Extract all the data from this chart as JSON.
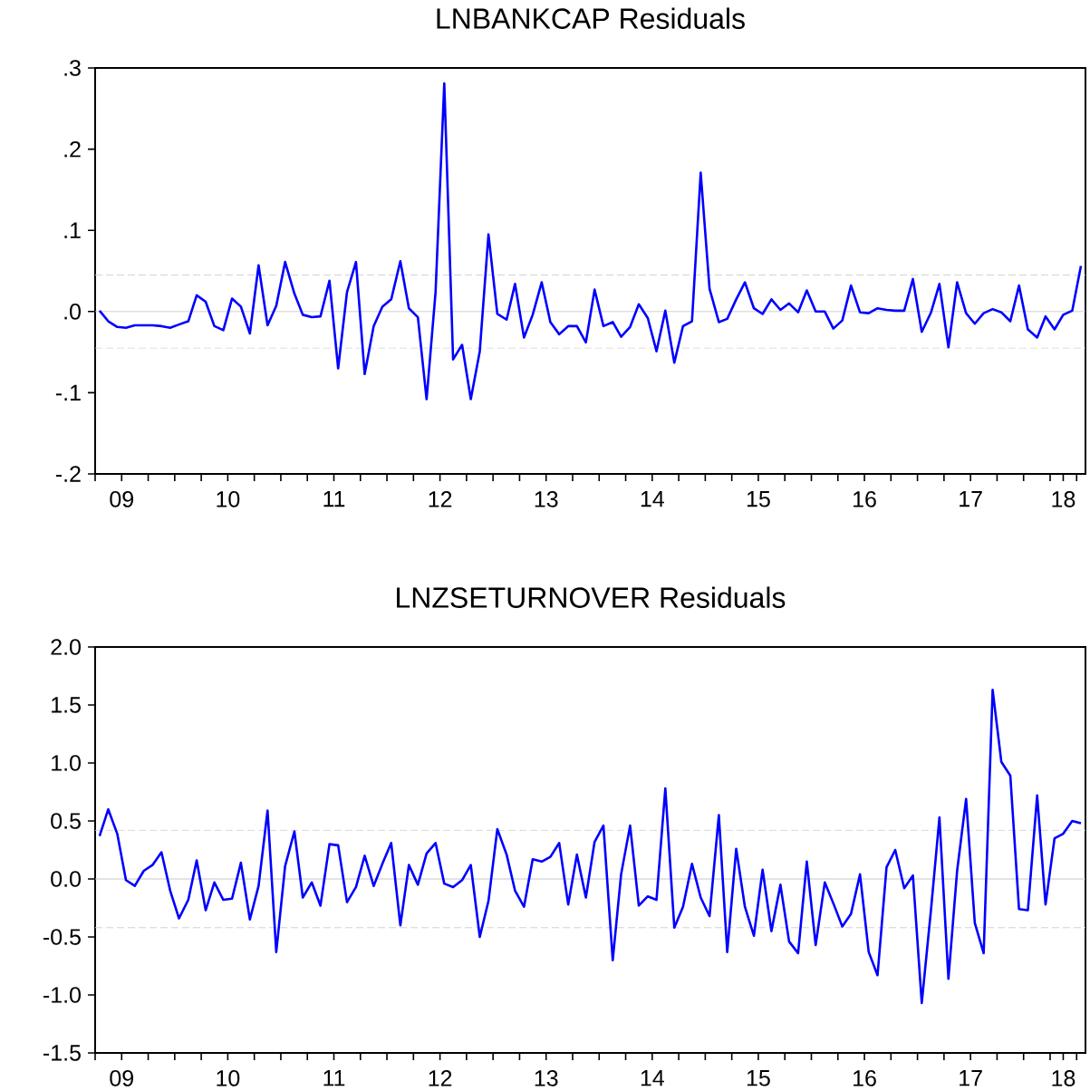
{
  "chart_data": [
    {
      "type": "line",
      "title": "LNBANKCAP Residuals",
      "x": [
        "2009-04-16",
        "2009-05-16",
        "2009-06-16",
        "2009-07-16",
        "2009-08-16",
        "2009-09-16",
        "2009-10-16",
        "2009-11-16",
        "2009-12-16",
        "2010-01-16",
        "2010-02-16",
        "2010-03-16",
        "2010-04-16",
        "2010-05-16",
        "2010-06-16",
        "2010-07-16",
        "2010-08-16",
        "2010-09-16",
        "2010-10-16",
        "2010-11-16",
        "2010-12-16",
        "2011-01-16",
        "2011-02-16",
        "2011-03-16",
        "2011-04-16",
        "2011-05-16",
        "2011-06-16",
        "2011-07-16",
        "2011-08-16",
        "2011-09-16",
        "2011-10-16",
        "2011-11-16",
        "2011-12-16",
        "2012-01-16",
        "2012-02-16",
        "2012-03-16",
        "2012-04-16",
        "2012-05-16",
        "2012-06-16",
        "2012-07-16",
        "2012-08-16",
        "2012-09-16",
        "2012-10-16",
        "2012-11-16",
        "2012-12-16",
        "2013-01-16",
        "2013-02-16",
        "2013-03-16",
        "2013-04-16",
        "2013-05-16",
        "2013-06-16",
        "2013-07-16",
        "2013-08-16",
        "2013-09-16",
        "2013-10-16",
        "2013-11-16",
        "2013-12-16",
        "2014-01-16",
        "2014-02-16",
        "2014-03-16",
        "2014-04-16",
        "2014-05-16",
        "2014-06-16",
        "2014-07-16",
        "2014-08-16",
        "2014-09-16",
        "2014-10-16",
        "2014-11-16",
        "2014-12-16",
        "2015-01-16",
        "2015-02-16",
        "2015-03-16",
        "2015-04-16",
        "2015-05-16",
        "2015-06-16",
        "2015-07-16",
        "2015-08-16",
        "2015-09-16",
        "2015-10-16",
        "2015-11-16",
        "2015-12-16",
        "2016-01-16",
        "2016-02-16",
        "2016-03-16",
        "2016-04-16",
        "2016-05-16",
        "2016-06-16",
        "2016-07-16",
        "2016-08-16",
        "2016-09-16",
        "2016-10-16",
        "2016-11-16",
        "2016-12-16",
        "2017-01-16",
        "2017-02-16",
        "2017-03-16",
        "2017-04-16",
        "2017-05-16",
        "2017-06-16",
        "2017-07-16",
        "2017-08-16",
        "2017-09-16",
        "2017-10-16",
        "2017-11-16",
        "2017-12-16",
        "2018-01-16",
        "2018-02-16",
        "2018-03-16",
        "2018-04-16",
        "2018-05-16",
        "2018-06-16",
        "2018-07-16"
      ],
      "series": [
        {
          "color": "#0000ff",
          "values": [
            0.001,
            -0.012,
            -0.019,
            -0.02,
            -0.017,
            -0.017,
            -0.017,
            -0.018,
            -0.02,
            -0.016,
            -0.012,
            0.02,
            0.012,
            -0.018,
            -0.023,
            0.016,
            0.006,
            -0.027,
            0.057,
            -0.017,
            0.007,
            0.061,
            0.022,
            -0.004,
            -0.007,
            -0.006,
            0.038,
            -0.07,
            0.024,
            0.061,
            -0.077,
            -0.018,
            0.006,
            0.015,
            0.062,
            0.004,
            -0.007,
            -0.108,
            0.024,
            0.281,
            -0.059,
            -0.041,
            -0.108,
            -0.049,
            0.095,
            -0.003,
            -0.01,
            0.034,
            -0.032,
            -0.004,
            0.036,
            -0.013,
            -0.028,
            -0.018,
            -0.018,
            -0.038,
            0.027,
            -0.018,
            -0.013,
            -0.031,
            -0.019,
            0.009,
            -0.008,
            -0.049,
            0.001,
            -0.063,
            -0.018,
            -0.012,
            0.171,
            0.028,
            -0.013,
            -0.009,
            0.015,
            0.036,
            0.004,
            -0.003,
            0.015,
            0.002,
            0.01,
            -0.001,
            0.026,
            0,
            0,
            -0.021,
            -0.011,
            0.032,
            -0.001,
            -0.002,
            0.004,
            0.002,
            0.001,
            0.001,
            0.04,
            -0.025,
            -0.001,
            0.034,
            -0.044,
            0.036,
            -0.002,
            -0.015,
            -0.002,
            0.003,
            -0.001,
            -0.012,
            0.032,
            -0.022,
            -0.032,
            -0.006,
            -0.022,
            -0.004,
            0.001,
            0.056
          ]
        }
      ],
      "xlim": [
        "2009-04-01",
        "2018-08-01"
      ],
      "ylim": [
        -0.2,
        0.3
      ],
      "yticks": [
        {
          "value": -0.2,
          "label": "-.2"
        },
        {
          "value": -0.1,
          "label": "-.1"
        },
        {
          "value": 0,
          "label": ".0"
        },
        {
          "value": 0.1,
          "label": ".1"
        },
        {
          "value": 0.2,
          "label": ".2"
        },
        {
          "value": 0.3,
          "label": ".3"
        }
      ],
      "xticks": [
        {
          "value": "2009-04-01",
          "label": null
        },
        {
          "value": "2009-07-01",
          "label": "09"
        },
        {
          "value": "2009-10-01",
          "label": null
        },
        {
          "value": "2010-01-01",
          "label": null
        },
        {
          "value": "2010-04-01",
          "label": null
        },
        {
          "value": "2010-07-01",
          "label": "10"
        },
        {
          "value": "2010-10-01",
          "label": null
        },
        {
          "value": "2011-01-01",
          "label": null
        },
        {
          "value": "2011-04-01",
          "label": null
        },
        {
          "value": "2011-07-01",
          "label": "11"
        },
        {
          "value": "2011-10-01",
          "label": null
        },
        {
          "value": "2012-01-01",
          "label": null
        },
        {
          "value": "2012-04-01",
          "label": null
        },
        {
          "value": "2012-07-01",
          "label": "12"
        },
        {
          "value": "2012-10-01",
          "label": null
        },
        {
          "value": "2013-01-01",
          "label": null
        },
        {
          "value": "2013-04-01",
          "label": null
        },
        {
          "value": "2013-07-01",
          "label": "13"
        },
        {
          "value": "2013-10-01",
          "label": null
        },
        {
          "value": "2014-01-01",
          "label": null
        },
        {
          "value": "2014-04-01",
          "label": null
        },
        {
          "value": "2014-07-01",
          "label": "14"
        },
        {
          "value": "2014-10-01",
          "label": null
        },
        {
          "value": "2015-01-01",
          "label": null
        },
        {
          "value": "2015-04-01",
          "label": null
        },
        {
          "value": "2015-07-01",
          "label": "15"
        },
        {
          "value": "2015-10-01",
          "label": null
        },
        {
          "value": "2016-01-01",
          "label": null
        },
        {
          "value": "2016-04-01",
          "label": null
        },
        {
          "value": "2016-07-01",
          "label": "16"
        },
        {
          "value": "2016-10-01",
          "label": null
        },
        {
          "value": "2017-01-01",
          "label": null
        },
        {
          "value": "2017-04-01",
          "label": null
        },
        {
          "value": "2017-07-01",
          "label": "17"
        },
        {
          "value": "2017-10-01",
          "label": null
        },
        {
          "value": "2018-01-01",
          "label": null
        },
        {
          "value": "2018-04-01",
          "label": null
        },
        {
          "value": "2018-05-16",
          "label": "18"
        },
        {
          "value": "2018-07-01",
          "label": null
        }
      ],
      "ref_lines": [
        {
          "axis": "y",
          "value": 0,
          "color": "#c8c8c8",
          "line_style": "solid"
        },
        {
          "axis": "y",
          "value": 0.045,
          "color": "#d3d3d3",
          "line_style": "dashed"
        },
        {
          "axis": "y",
          "value": -0.045,
          "color": "#d3d3d3",
          "line_style": "dashed"
        }
      ]
    },
    {
      "type": "line",
      "title": "LNZSETURNOVER Residuals",
      "x": [
        "2009-04-16",
        "2009-05-16",
        "2009-06-16",
        "2009-07-16",
        "2009-08-16",
        "2009-09-16",
        "2009-10-16",
        "2009-11-16",
        "2009-12-16",
        "2010-01-16",
        "2010-02-16",
        "2010-03-16",
        "2010-04-16",
        "2010-05-16",
        "2010-06-16",
        "2010-07-16",
        "2010-08-16",
        "2010-09-16",
        "2010-10-16",
        "2010-11-16",
        "2010-12-16",
        "2011-01-16",
        "2011-02-16",
        "2011-03-16",
        "2011-04-16",
        "2011-05-16",
        "2011-06-16",
        "2011-07-16",
        "2011-08-16",
        "2011-09-16",
        "2011-10-16",
        "2011-11-16",
        "2011-12-16",
        "2012-01-16",
        "2012-02-16",
        "2012-03-16",
        "2012-04-16",
        "2012-05-16",
        "2012-06-16",
        "2012-07-16",
        "2012-08-16",
        "2012-09-16",
        "2012-10-16",
        "2012-11-16",
        "2012-12-16",
        "2013-01-16",
        "2013-02-16",
        "2013-03-16",
        "2013-04-16",
        "2013-05-16",
        "2013-06-16",
        "2013-07-16",
        "2013-08-16",
        "2013-09-16",
        "2013-10-16",
        "2013-11-16",
        "2013-12-16",
        "2014-01-16",
        "2014-02-16",
        "2014-03-16",
        "2014-04-16",
        "2014-05-16",
        "2014-06-16",
        "2014-07-16",
        "2014-08-16",
        "2014-09-16",
        "2014-10-16",
        "2014-11-16",
        "2014-12-16",
        "2015-01-16",
        "2015-02-16",
        "2015-03-16",
        "2015-04-16",
        "2015-05-16",
        "2015-06-16",
        "2015-07-16",
        "2015-08-16",
        "2015-09-16",
        "2015-10-16",
        "2015-11-16",
        "2015-12-16",
        "2016-01-16",
        "2016-02-16",
        "2016-03-16",
        "2016-04-16",
        "2016-05-16",
        "2016-06-16",
        "2016-07-16",
        "2016-08-16",
        "2016-09-16",
        "2016-10-16",
        "2016-11-16",
        "2016-12-16",
        "2017-01-16",
        "2017-02-16",
        "2017-03-16",
        "2017-04-16",
        "2017-05-16",
        "2017-06-16",
        "2017-07-16",
        "2017-08-16",
        "2017-09-16",
        "2017-10-16",
        "2017-11-16",
        "2017-12-16",
        "2018-01-16",
        "2018-02-16",
        "2018-03-16",
        "2018-04-16",
        "2018-05-16",
        "2018-06-16",
        "2018-07-16"
      ],
      "series": [
        {
          "color": "#0000ff",
          "values": [
            0.37,
            0.6,
            0.39,
            -0.01,
            -0.06,
            0.07,
            0.12,
            0.23,
            -0.1,
            -0.34,
            -0.18,
            0.16,
            -0.27,
            -0.03,
            -0.18,
            -0.17,
            0.14,
            -0.35,
            -0.06,
            0.59,
            -0.63,
            0.11,
            0.41,
            -0.16,
            -0.03,
            -0.23,
            0.3,
            0.29,
            -0.2,
            -0.07,
            0.2,
            -0.06,
            0.13,
            0.31,
            -0.4,
            0.12,
            -0.05,
            0.22,
            0.31,
            -0.04,
            -0.07,
            -0.01,
            0.12,
            -0.5,
            -0.19,
            0.43,
            0.21,
            -0.1,
            -0.24,
            0.17,
            0.15,
            0.19,
            0.31,
            -0.22,
            0.21,
            -0.16,
            0.32,
            0.46,
            -0.7,
            0.04,
            0.46,
            -0.23,
            -0.15,
            -0.18,
            0.78,
            -0.42,
            -0.24,
            0.13,
            -0.16,
            -0.32,
            0.55,
            -0.63,
            0.26,
            -0.24,
            -0.49,
            0.08,
            -0.45,
            -0.05,
            -0.54,
            -0.64,
            0.15,
            -0.57,
            -0.03,
            -0.21,
            -0.41,
            -0.3,
            0.04,
            -0.63,
            -0.83,
            0.1,
            0.25,
            -0.08,
            0.03,
            -1.07,
            -0.26,
            0.53,
            -0.86,
            0.07,
            0.69,
            -0.38,
            -0.64,
            1.63,
            1.01,
            0.89,
            -0.26,
            -0.27,
            0.72,
            -0.22,
            0.35,
            0.39,
            0.5,
            0.48
          ]
        }
      ],
      "xlim": [
        "2009-04-01",
        "2018-08-01"
      ],
      "ylim": [
        -1.5,
        2.0
      ],
      "yticks": [
        {
          "value": -1.5,
          "label": "-1.5"
        },
        {
          "value": -1.0,
          "label": "-1.0"
        },
        {
          "value": -0.5,
          "label": "-0.5"
        },
        {
          "value": 0,
          "label": "0.0"
        },
        {
          "value": 0.5,
          "label": "0.5"
        },
        {
          "value": 1.0,
          "label": "1.0"
        },
        {
          "value": 1.5,
          "label": "1.5"
        },
        {
          "value": 2.0,
          "label": "2.0"
        }
      ],
      "xticks": [
        {
          "value": "2009-04-01",
          "label": null
        },
        {
          "value": "2009-07-01",
          "label": "09"
        },
        {
          "value": "2009-10-01",
          "label": null
        },
        {
          "value": "2010-01-01",
          "label": null
        },
        {
          "value": "2010-04-01",
          "label": null
        },
        {
          "value": "2010-07-01",
          "label": "10"
        },
        {
          "value": "2010-10-01",
          "label": null
        },
        {
          "value": "2011-01-01",
          "label": null
        },
        {
          "value": "2011-04-01",
          "label": null
        },
        {
          "value": "2011-07-01",
          "label": "11"
        },
        {
          "value": "2011-10-01",
          "label": null
        },
        {
          "value": "2012-01-01",
          "label": null
        },
        {
          "value": "2012-04-01",
          "label": null
        },
        {
          "value": "2012-07-01",
          "label": "12"
        },
        {
          "value": "2012-10-01",
          "label": null
        },
        {
          "value": "2013-01-01",
          "label": null
        },
        {
          "value": "2013-04-01",
          "label": null
        },
        {
          "value": "2013-07-01",
          "label": "13"
        },
        {
          "value": "2013-10-01",
          "label": null
        },
        {
          "value": "2014-01-01",
          "label": null
        },
        {
          "value": "2014-04-01",
          "label": null
        },
        {
          "value": "2014-07-01",
          "label": "14"
        },
        {
          "value": "2014-10-01",
          "label": null
        },
        {
          "value": "2015-01-01",
          "label": null
        },
        {
          "value": "2015-04-01",
          "label": null
        },
        {
          "value": "2015-07-01",
          "label": "15"
        },
        {
          "value": "2015-10-01",
          "label": null
        },
        {
          "value": "2016-01-01",
          "label": null
        },
        {
          "value": "2016-04-01",
          "label": null
        },
        {
          "value": "2016-07-01",
          "label": "16"
        },
        {
          "value": "2016-10-01",
          "label": null
        },
        {
          "value": "2017-01-01",
          "label": null
        },
        {
          "value": "2017-04-01",
          "label": null
        },
        {
          "value": "2017-07-01",
          "label": "17"
        },
        {
          "value": "2017-10-01",
          "label": null
        },
        {
          "value": "2018-01-01",
          "label": null
        },
        {
          "value": "2018-04-01",
          "label": null
        },
        {
          "value": "2018-05-16",
          "label": "18"
        },
        {
          "value": "2018-07-01",
          "label": null
        }
      ],
      "ref_lines": [
        {
          "axis": "y",
          "value": 0,
          "color": "#c8c8c8",
          "line_style": "solid"
        },
        {
          "axis": "y",
          "value": 0.42,
          "color": "#d3d3d3",
          "line_style": "dashed"
        },
        {
          "axis": "y",
          "value": -0.42,
          "color": "#d3d3d3",
          "line_style": "dashed"
        }
      ]
    }
  ]
}
